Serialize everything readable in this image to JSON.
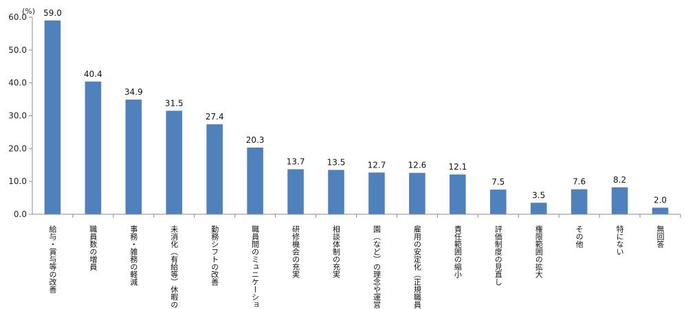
{
  "chart_data": {
    "type": "bar",
    "title": "",
    "xlabel": "",
    "ylabel": "",
    "unit": "(%)",
    "ylim": [
      0,
      60
    ],
    "yticks": [
      "0.0",
      "10.0",
      "20.0",
      "30.0",
      "40.0",
      "50.0",
      "60.0"
    ],
    "grid": false,
    "bar_color": "#4F81BD",
    "categories": [
      "給与・賞与等の改善",
      "職員数の増員",
      "事務・雑務の軽減",
      "未消化（有給等）休暇の改善",
      "勤務シフトの改善",
      "職員間のミュニケーション",
      "研修機会の充実",
      "相談体制の充実",
      "園（など）の理念や運営方針",
      "雇用の安定化（正規職員登用",
      "責任範囲の縮小",
      "評価制度の見直し",
      "権限範囲の拡大",
      "その他",
      "特にない",
      "無回答"
    ],
    "values": [
      59.0,
      40.4,
      34.9,
      31.5,
      27.4,
      20.3,
      13.7,
      13.5,
      12.7,
      12.6,
      12.1,
      7.5,
      3.5,
      7.6,
      8.2,
      2.0
    ],
    "value_labels": [
      "59.0",
      "40.4",
      "34.9",
      "31.5",
      "27.4",
      "20.3",
      "13.7",
      "13.5",
      "12.7",
      "12.6",
      "12.1",
      "7.5",
      "3.5",
      "7.6",
      "8.2",
      "2.0"
    ]
  }
}
